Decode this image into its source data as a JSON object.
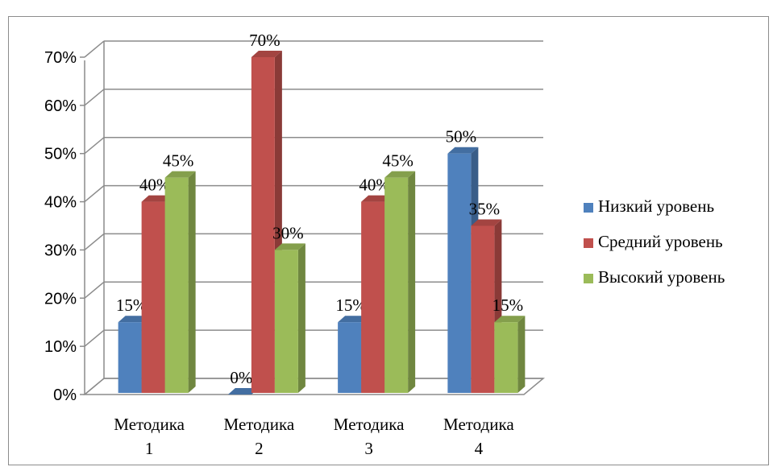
{
  "chart_data": {
    "type": "bar",
    "style": "3d-clustered-column",
    "categories": [
      [
        "Методика",
        "1"
      ],
      [
        "Методика",
        "2"
      ],
      [
        "Методика",
        "3"
      ],
      [
        "Методика",
        "4"
      ]
    ],
    "series": [
      {
        "name": "Низкий уровень",
        "color": "#4f81bd",
        "values": [
          15,
          0,
          15,
          50
        ]
      },
      {
        "name": "Средний уровень",
        "color": "#c0504d",
        "values": [
          40,
          70,
          40,
          35
        ]
      },
      {
        "name": "Высокий уровень",
        "color": "#9bbb59",
        "values": [
          45,
          30,
          45,
          15
        ]
      }
    ],
    "data_labels": [
      [
        "15%",
        "40%",
        "45%"
      ],
      [
        "0%",
        "70%",
        "30%"
      ],
      [
        "15%",
        "40%",
        "45%"
      ],
      [
        "50%",
        "35%",
        "15%"
      ]
    ],
    "yticks": [
      "0%",
      "10%",
      "20%",
      "30%",
      "40%",
      "50%",
      "60%",
      "70%"
    ],
    "ylim": [
      0,
      70
    ],
    "grid": true,
    "legend_position": "right"
  }
}
